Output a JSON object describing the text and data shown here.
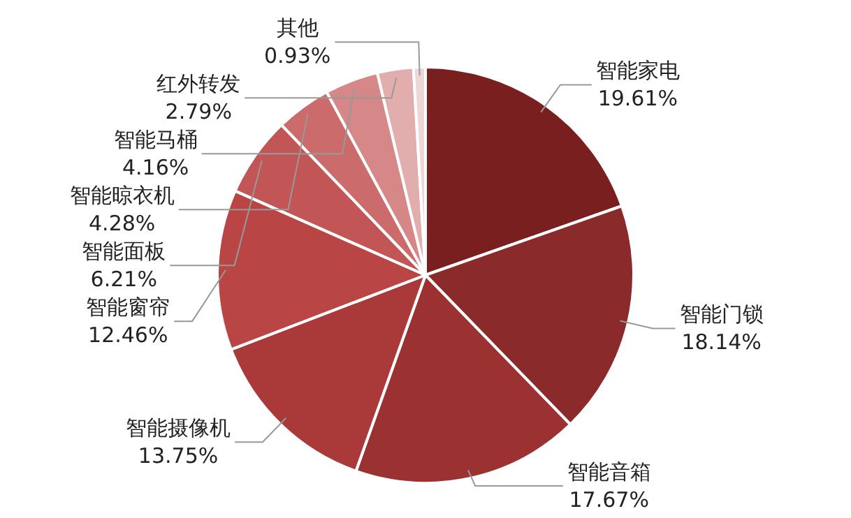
{
  "chart_data": {
    "type": "pie",
    "categories": [
      "智能家电",
      "智能门锁",
      "智能音箱",
      "智能摄像机",
      "智能窗帘",
      "智能面板",
      "智能晾衣机",
      "智能马桶",
      "红外转发",
      "其他"
    ],
    "values": [
      19.61,
      18.14,
      17.67,
      13.75,
      12.46,
      6.21,
      4.28,
      4.16,
      2.79,
      0.93
    ],
    "value_labels": [
      "19.61%",
      "18.14%",
      "17.67%",
      "13.75%",
      "12.46%",
      "6.21%",
      "4.28%",
      "4.16%",
      "2.79%",
      "0.93%"
    ],
    "colors": [
      "#7a1f1f",
      "#8a2a2a",
      "#9b3131",
      "#aa3939",
      "#b94545",
      "#c25555",
      "#cc6b6b",
      "#d68787",
      "#e2adad",
      "#efd6d6"
    ],
    "legend": false
  }
}
